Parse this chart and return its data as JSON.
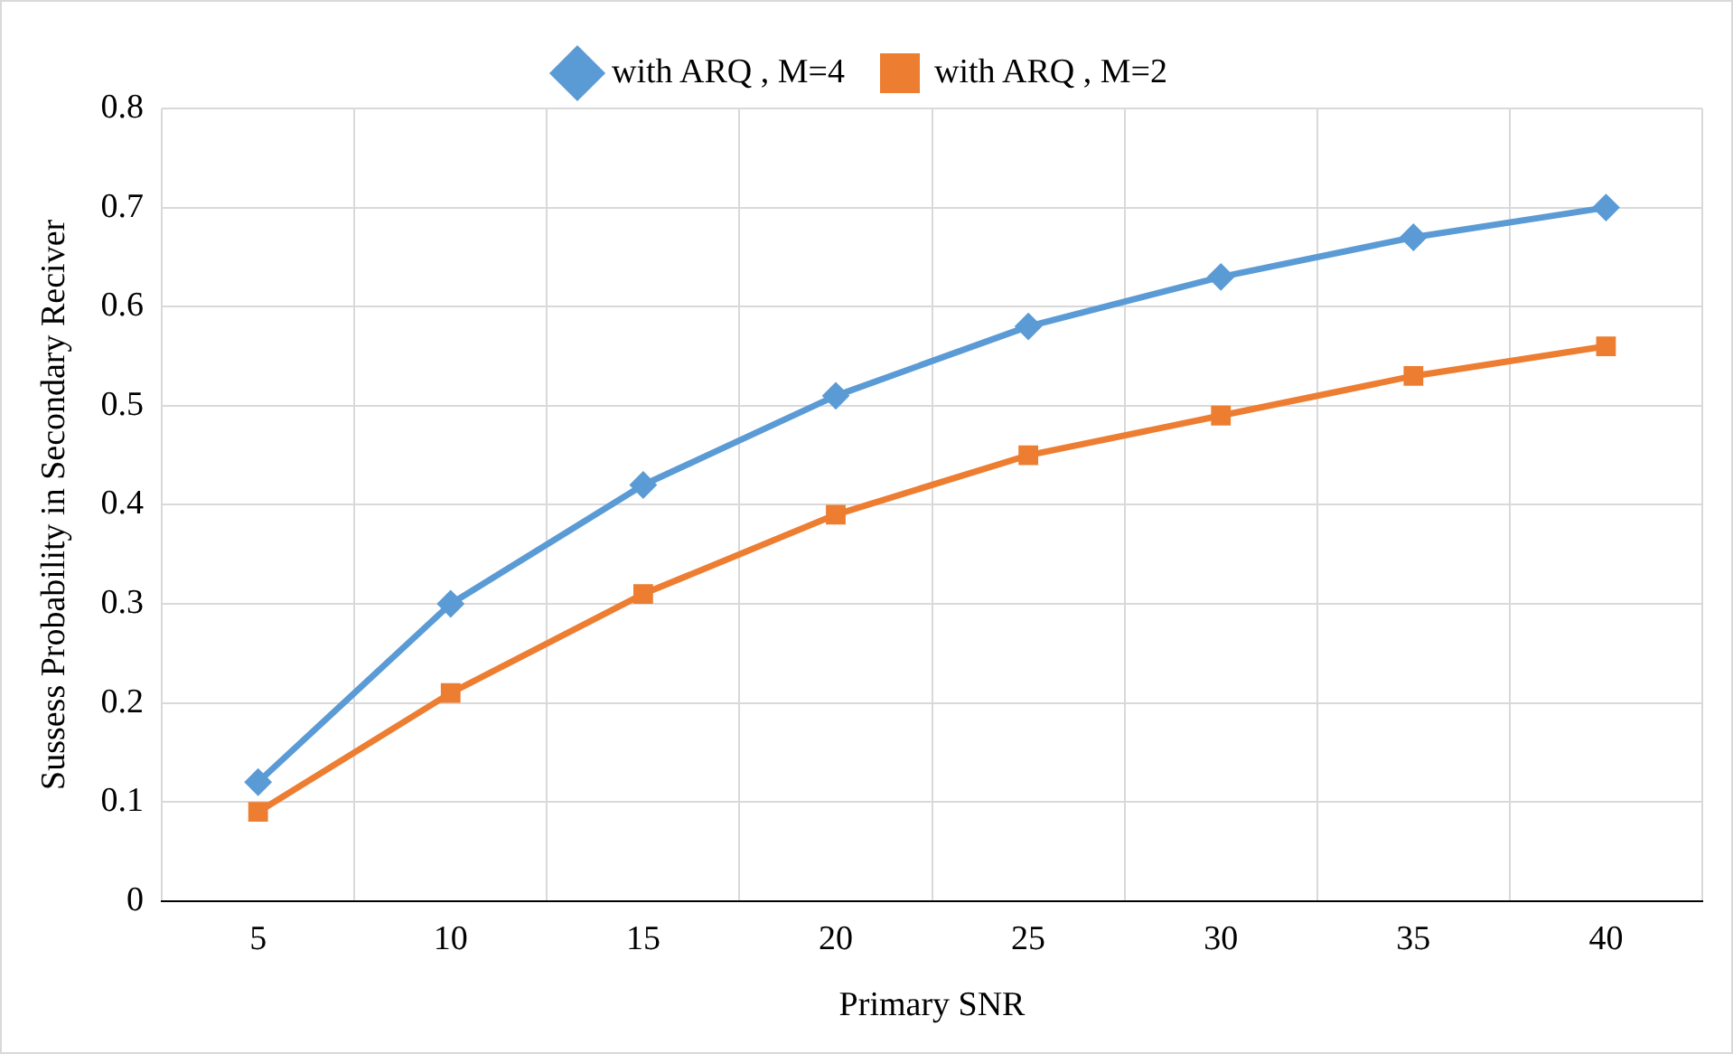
{
  "chart_data": {
    "type": "line",
    "xlabel": "Primary SNR",
    "ylabel": "Sussess Probability in Secondary Reciver",
    "categories": [
      "5",
      "10",
      "15",
      "20",
      "25",
      "30",
      "35",
      "40"
    ],
    "series": [
      {
        "name": "with ARQ , M=4",
        "color": "#5b9bd5",
        "marker": "diamond",
        "values": [
          0.12,
          0.3,
          0.42,
          0.51,
          0.58,
          0.63,
          0.67,
          0.7
        ]
      },
      {
        "name": "with ARQ , M=2",
        "color": "#ed7d31",
        "marker": "square",
        "values": [
          0.09,
          0.21,
          0.31,
          0.39,
          0.45,
          0.49,
          0.53,
          0.56
        ]
      }
    ],
    "ylim": [
      0,
      0.8
    ],
    "yticks": [
      0,
      0.1,
      0.2,
      0.3,
      0.4,
      0.5,
      0.6,
      0.7,
      0.8
    ],
    "grid": true,
    "legend": "top",
    "line_style": "solid"
  }
}
